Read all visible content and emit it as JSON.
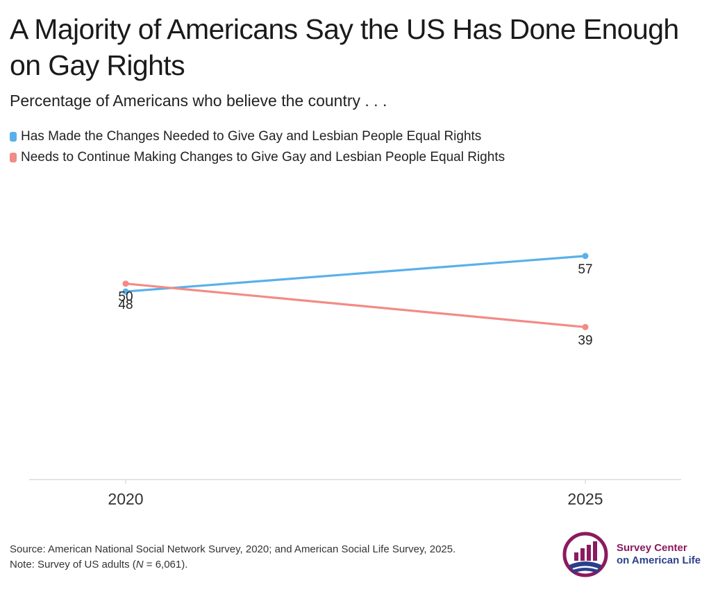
{
  "title": "A Majority of Americans Say the US Has Done Enough on Gay Rights",
  "subtitle": "Percentage of Americans who believe the country . . .",
  "colors": {
    "series_blue": "#5ab0ea",
    "series_red": "#f28b86",
    "axis": "#dcdcdc",
    "logo_magenta": "#8b1a5e",
    "logo_navy": "#2a3f8c"
  },
  "chart_data": {
    "type": "line",
    "x": [
      "2020",
      "2025"
    ],
    "series": [
      {
        "name": "Has Made the Changes Needed to Give Gay and Lesbian People Equal Rights",
        "values": [
          48,
          57
        ],
        "color": "#5ab0ea",
        "label_position": "below"
      },
      {
        "name": "Needs to Continue Making Changes to Give Gay and Lesbian People Equal Rights",
        "values": [
          50,
          39
        ],
        "color": "#f28b86",
        "label_position": "below"
      }
    ],
    "ylim": [
      30,
      60
    ],
    "grid": false,
    "legend_placement": "top-left"
  },
  "source": {
    "line1": "Source: American National Social Network Survey, 2020; and American Social Life Survey, 2025.",
    "line2_prefix": "Note: Survey of US adults (",
    "line2_n": "N",
    "line2_suffix": " = 6,061)."
  },
  "logo": {
    "icon": "survey-center-logo-icon",
    "line1": "Survey Center",
    "line2": "on American Life"
  }
}
